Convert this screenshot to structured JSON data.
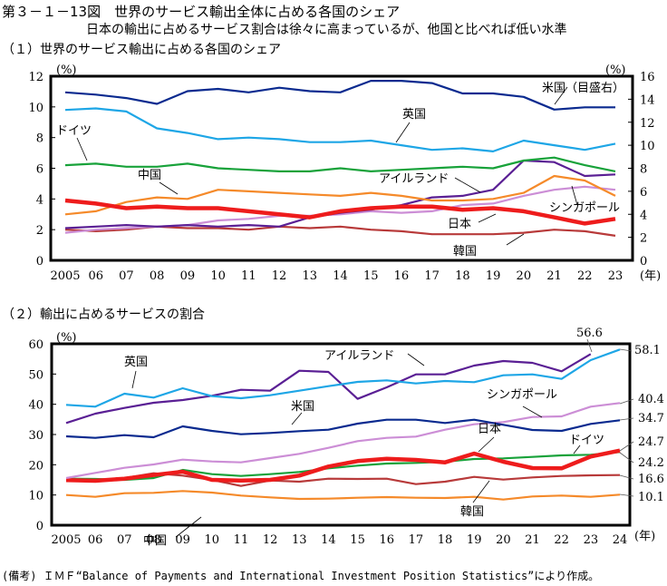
{
  "figure": {
    "title": "第３－１－13図　世界のサービス輸出全体に占める各国のシェア",
    "subtitle": "日本の輸出に占めるサービス割合は徐々に高まっているが、他国と比べれば低い水準",
    "note": "(備考) ＩＭＦ“Balance of Payments and International Investment Position Statistics”により作成。"
  },
  "chart_data": [
    {
      "type": "line",
      "title": "（１）世界のサービス輸出に占める各国のシェア",
      "xlabel": "(年)",
      "ylabel": "(%)",
      "ylabel_right": "(%)",
      "ylim": [
        0,
        12
      ],
      "ylim_right": [
        0,
        16
      ],
      "yticks": [
        "0",
        "2",
        "4",
        "6",
        "8",
        "10",
        "12"
      ],
      "yticks_right": [
        "0",
        "2",
        "4",
        "6",
        "8",
        "10",
        "12",
        "14",
        "16"
      ],
      "x": [
        "2005",
        "06",
        "07",
        "08",
        "09",
        "10",
        "11",
        "12",
        "13",
        "14",
        "15",
        "16",
        "17",
        "18",
        "19",
        "20",
        "21",
        "22",
        "23"
      ],
      "grid": false,
      "series": [
        {
          "name": "米国（目盛右）",
          "axis": "right",
          "color": "#0a2a8f",
          "values": [
            14.6,
            14.4,
            14.1,
            13.6,
            14.7,
            14.9,
            14.6,
            15.0,
            14.7,
            14.6,
            15.6,
            15.6,
            15.4,
            14.5,
            14.5,
            14.2,
            13.1,
            13.3,
            13.3
          ]
        },
        {
          "name": "英国",
          "axis": "left",
          "color": "#1ea6e6",
          "values": [
            9.8,
            9.9,
            9.7,
            8.6,
            8.3,
            7.9,
            8.0,
            7.9,
            7.7,
            7.7,
            7.8,
            7.5,
            7.2,
            7.3,
            7.1,
            7.8,
            7.5,
            7.2,
            7.6
          ]
        },
        {
          "name": "ドイツ",
          "axis": "left",
          "color": "#18a23a",
          "values": [
            6.2,
            6.3,
            6.1,
            6.1,
            6.3,
            6.0,
            5.9,
            5.8,
            5.8,
            6.0,
            5.8,
            5.9,
            6.0,
            6.1,
            6.0,
            6.5,
            6.7,
            6.2,
            5.8
          ]
        },
        {
          "name": "中国",
          "axis": "left",
          "color": "#f58a2a",
          "values": [
            3.0,
            3.2,
            3.8,
            4.1,
            4.0,
            4.6,
            4.5,
            4.4,
            4.3,
            4.2,
            4.4,
            4.2,
            3.9,
            3.9,
            4.0,
            4.4,
            5.5,
            5.2,
            4.2
          ]
        },
        {
          "name": "日本",
          "axis": "left",
          "color": "#ee1c1c",
          "values": [
            3.9,
            3.7,
            3.4,
            3.5,
            3.4,
            3.4,
            3.2,
            3.0,
            2.8,
            3.2,
            3.4,
            3.5,
            3.5,
            3.3,
            3.4,
            3.2,
            2.8,
            2.4,
            2.7
          ]
        },
        {
          "name": "アイルランド",
          "axis": "left",
          "color": "#5a1f94",
          "values": [
            2.1,
            2.2,
            2.3,
            2.2,
            2.3,
            2.2,
            2.3,
            2.2,
            2.8,
            3.1,
            3.3,
            3.6,
            4.1,
            4.2,
            4.6,
            6.5,
            6.4,
            5.5,
            5.6
          ]
        },
        {
          "name": "シンガポール",
          "axis": "left",
          "color": "#cc8ed6",
          "values": [
            1.8,
            2.0,
            2.1,
            2.2,
            2.3,
            2.6,
            2.7,
            2.9,
            2.9,
            3.0,
            3.2,
            3.1,
            3.2,
            3.6,
            3.7,
            4.2,
            4.6,
            4.8,
            4.6
          ]
        },
        {
          "name": "韓国",
          "axis": "left",
          "color": "#b83a3a",
          "values": [
            2.0,
            1.9,
            2.0,
            2.2,
            2.1,
            2.1,
            2.0,
            2.2,
            2.1,
            2.2,
            2.0,
            1.9,
            1.7,
            1.7,
            1.7,
            1.8,
            2.0,
            1.9,
            1.6
          ]
        }
      ],
      "annotations": [
        "米国（目盛右）",
        "英国",
        "ドイツ",
        "中国",
        "アイルランド",
        "シンガポール",
        "日本",
        "韓国"
      ]
    },
    {
      "type": "line",
      "title": "（２）輸出に占めるサービスの割合",
      "xlabel": "(年)",
      "ylabel": "(%)",
      "ylim": [
        0,
        60
      ],
      "yticks": [
        "0",
        "10",
        "20",
        "30",
        "40",
        "50",
        "60"
      ],
      "x": [
        "2005",
        "06",
        "07",
        "08",
        "09",
        "10",
        "11",
        "12",
        "13",
        "14",
        "15",
        "16",
        "17",
        "18",
        "19",
        "20",
        "21",
        "22",
        "23",
        "24"
      ],
      "grid": false,
      "series": [
        {
          "name": "英国",
          "color": "#1ea6e6",
          "values": [
            39.8,
            39.2,
            43.5,
            42.2,
            45.3,
            42.7,
            42.0,
            43.0,
            44.5,
            46.0,
            47.4,
            47.9,
            46.9,
            47.7,
            47.3,
            49.6,
            49.9,
            48.4,
            54.6,
            58.1
          ],
          "end_label": "58.1"
        },
        {
          "name": "アイルランド",
          "color": "#5a1f94",
          "values": [
            33.8,
            36.9,
            38.8,
            40.5,
            41.4,
            42.8,
            44.8,
            44.5,
            51.1,
            50.7,
            41.8,
            45.6,
            49.9,
            49.9,
            52.8,
            54.3,
            53.7,
            50.9,
            56.6,
            null
          ],
          "end_label": "56.6"
        },
        {
          "name": "シンガポール",
          "color": "#cc8ed6",
          "values": [
            15.6,
            17.3,
            19.0,
            20.1,
            21.7,
            21.1,
            20.8,
            22.2,
            23.6,
            25.6,
            27.8,
            28.9,
            29.3,
            31.6,
            33.4,
            34.1,
            35.8,
            36.0,
            39.2,
            40.4
          ],
          "end_label": "40.4"
        },
        {
          "name": "米国",
          "color": "#0a2a8f",
          "values": [
            29.4,
            28.9,
            29.8,
            29.1,
            32.7,
            31.2,
            30.1,
            30.5,
            31.1,
            31.6,
            33.6,
            34.9,
            34.9,
            33.8,
            34.9,
            33.2,
            31.5,
            31.2,
            33.5,
            34.7
          ],
          "end_label": "34.7"
        },
        {
          "name": "日本",
          "color": "#ee1c1c",
          "values": [
            14.9,
            14.7,
            15.4,
            16.6,
            17.7,
            15.0,
            14.8,
            15.0,
            16.4,
            19.4,
            21.2,
            22.0,
            21.6,
            20.8,
            23.7,
            21.0,
            18.9,
            18.8,
            22.7,
            24.7
          ],
          "end_label": "24.7"
        },
        {
          "name": "ドイツ",
          "color": "#18a23a",
          "values": [
            15.4,
            15.3,
            15.0,
            15.6,
            18.3,
            16.9,
            16.3,
            16.9,
            17.6,
            18.8,
            19.7,
            20.4,
            20.6,
            21.0,
            21.9,
            22.1,
            22.6,
            23.1,
            23.3,
            24.2
          ],
          "end_label": "24.2"
        },
        {
          "name": "韓国",
          "color": "#b83a3a",
          "values": [
            15.0,
            14.9,
            15.6,
            17.2,
            16.4,
            15.0,
            13.0,
            14.8,
            14.4,
            15.4,
            15.3,
            15.4,
            13.6,
            14.4,
            16.0,
            15.1,
            15.8,
            16.3,
            16.5,
            16.6
          ],
          "end_label": "16.6"
        },
        {
          "name": "中国",
          "color": "#f58a2a",
          "values": [
            10.0,
            9.4,
            10.6,
            10.7,
            11.3,
            10.8,
            9.8,
            9.2,
            8.7,
            8.8,
            9.1,
            9.3,
            9.1,
            9.0,
            9.4,
            8.5,
            9.5,
            9.8,
            9.4,
            10.1
          ],
          "end_label": "10.1"
        }
      ],
      "annotations": [
        "英国",
        "アイルランド",
        "米国",
        "シンガポール",
        "日本",
        "ドイツ",
        "中国",
        "韓国"
      ]
    }
  ]
}
